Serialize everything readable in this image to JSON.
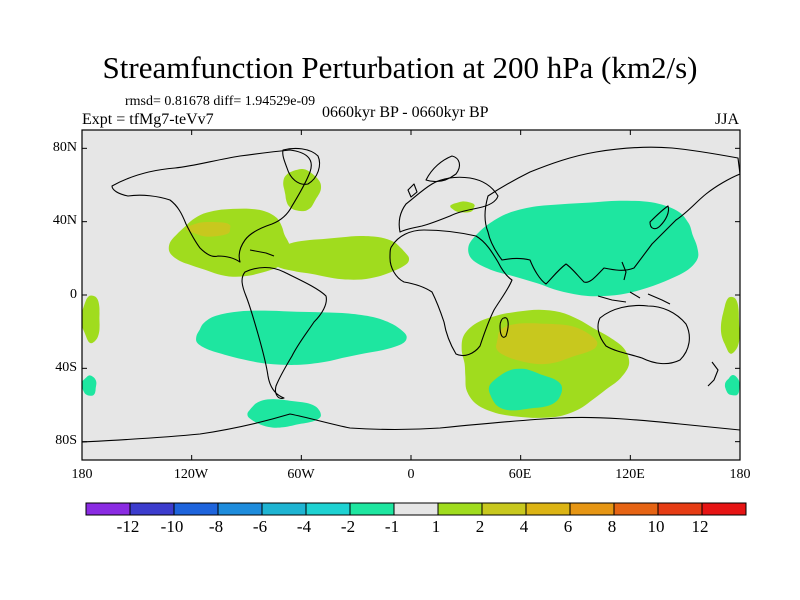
{
  "title": "Streamfunction Perturbation at 200 hPa (km2/s)",
  "stats_text": "rmsd= 0.81678 diff= 1.94529e-09",
  "experiment_text": "Expt = tfMg7-teVv7",
  "period_text": "0660kyr BP - 0660kyr BP",
  "season_text": "JJA",
  "map": {
    "background_color": "#e6e6e6",
    "coastline_color": "#000000",
    "projection": "cylindrical equidistant",
    "lon_range": [
      -180,
      180
    ],
    "lat_range": [
      -90,
      90
    ],
    "lat_tick_labels": [
      "80N",
      "40N",
      "0",
      "40S",
      "80S"
    ],
    "lon_tick_labels": [
      "180",
      "120W",
      "60W",
      "0",
      "60E",
      "120E",
      "180"
    ]
  },
  "colorbar": {
    "colors": [
      "#8a2be2",
      "#3c3ccd",
      "#1e64dc",
      "#1e8cdc",
      "#1eb4d2",
      "#1ed2d2",
      "#1ee6a0",
      "#e6e6e6",
      "#a0dc1e",
      "#c8c81e",
      "#dcb414",
      "#e69614",
      "#e66414",
      "#e63c14",
      "#e61414"
    ],
    "labels": [
      "-12",
      "-10",
      "-8",
      "-6",
      "-4",
      "-2",
      "-1",
      "1",
      "2",
      "4",
      "6",
      "8",
      "10",
      "12"
    ]
  },
  "chart_data": {
    "type": "heatmap",
    "title": "Streamfunction Perturbation at 200 hPa (km2/s)",
    "variable": "streamfunction perturbation",
    "level": "200 hPa",
    "units": "km2/s",
    "season": "JJA",
    "levels": [
      -12,
      -10,
      -8,
      -6,
      -4,
      -2,
      -1,
      1,
      2,
      4,
      6,
      8,
      10,
      12
    ],
    "contour_regions": [
      {
        "name": "east-pacific-north-anomaly",
        "value_range": [
          1,
          2
        ],
        "center": [
          -95,
          28
        ],
        "extent_lon": [
          -130,
          -65
        ],
        "extent_lat": [
          10,
          47
        ]
      },
      {
        "name": "east-pacific-north-core",
        "value_range": [
          2,
          4
        ],
        "center": [
          -110,
          36
        ],
        "extent_lon": [
          -122,
          -98
        ],
        "extent_lat": [
          32,
          40
        ]
      },
      {
        "name": "atlantic-north-anomaly",
        "value_range": [
          1,
          2
        ],
        "center": [
          -45,
          20
        ],
        "extent_lon": [
          -75,
          0
        ],
        "extent_lat": [
          9,
          32
        ]
      },
      {
        "name": "labrador-anomaly",
        "value_range": [
          1,
          2
        ],
        "center": [
          -60,
          58
        ],
        "extent_lon": [
          -70,
          -50
        ],
        "extent_lat": [
          46,
          69
        ]
      },
      {
        "name": "black-sea-anomaly",
        "value_range": [
          1,
          2
        ],
        "center": [
          28,
          48
        ],
        "extent_lon": [
          22,
          35
        ],
        "extent_lat": [
          45,
          51
        ]
      },
      {
        "name": "south-atlantic-negative",
        "value_range": [
          -2,
          -1
        ],
        "center": [
          -75,
          -23
        ],
        "extent_lon": [
          -120,
          -5
        ],
        "extent_lat": [
          -37,
          -8
        ]
      },
      {
        "name": "south-indian-positive",
        "value_range": [
          1,
          2
        ],
        "center": [
          75,
          -33
        ],
        "extent_lon": [
          25,
          115
        ],
        "extent_lat": [
          -67,
          -8
        ]
      },
      {
        "name": "south-indian-core",
        "value_range": [
          2,
          4
        ],
        "center": [
          70,
          -27
        ],
        "extent_lon": [
          45,
          100
        ],
        "extent_lat": [
          -37,
          -15
        ]
      },
      {
        "name": "asia-negative",
        "value_range": [
          -2,
          -1
        ],
        "center": [
          95,
          25
        ],
        "extent_lon": [
          35,
          160
        ],
        "extent_lat": [
          1,
          52
        ]
      },
      {
        "name": "southern-ocean-negative-west",
        "value_range": [
          -2,
          -1
        ],
        "center": [
          -68,
          -65
        ],
        "extent_lon": [
          -90,
          -50
        ],
        "extent_lat": [
          -72,
          -57
        ]
      },
      {
        "name": "southern-ocean-negative-east",
        "value_range": [
          -2,
          -1
        ],
        "center": [
          62,
          -52
        ],
        "extent_lon": [
          42,
          82
        ],
        "extent_lat": [
          -63,
          -41
        ]
      },
      {
        "name": "west-pacific-edge",
        "value_range": [
          1,
          2
        ],
        "center": [
          -178,
          -13
        ],
        "extent_lon": [
          -180,
          -170
        ],
        "extent_lat": [
          -26,
          0
        ]
      },
      {
        "name": "east-edge-positive",
        "value_range": [
          1,
          2
        ],
        "center": [
          178,
          -16
        ],
        "extent_lon": [
          170,
          180
        ],
        "extent_lat": [
          -32,
          -1
        ]
      },
      {
        "name": "south-edge-negative-west",
        "value_range": [
          -2,
          -1
        ],
        "center": [
          -178,
          -50
        ],
        "extent_lon": [
          -180,
          -172
        ],
        "extent_lat": [
          -55,
          -44
        ]
      },
      {
        "name": "south-edge-negative-east",
        "value_range": [
          -2,
          -1
        ],
        "center": [
          178,
          -50
        ],
        "extent_lon": [
          172,
          180
        ],
        "extent_lat": [
          -55,
          -44
        ]
      }
    ]
  }
}
